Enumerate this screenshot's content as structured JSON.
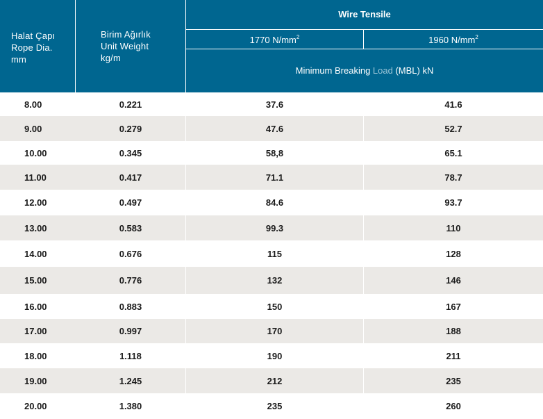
{
  "header": {
    "col1": [
      "Halat Çapı",
      "Rope Dia.",
      "mm"
    ],
    "col2": [
      "Birim Ağırlık",
      "Unit Weight",
      "kg/m"
    ],
    "group_title": "Wire Tensile",
    "tensile_1_value": "1770 N/mm",
    "tensile_1_exp": "2",
    "tensile_2_value": "1960 N/mm",
    "tensile_2_exp": "2",
    "mbl_prefix": "Minimum Breaking ",
    "mbl_load": "Load",
    "mbl_suffix": " (MBL) kN"
  },
  "colors": {
    "header_bg": "#006690",
    "alt_row": "#ebe9e6",
    "load_word": "#9cc6d8"
  },
  "rows": [
    [
      "8.00",
      "0.221",
      "37.6",
      "41.6"
    ],
    [
      "9.00",
      "0.279",
      "47.6",
      "52.7"
    ],
    [
      "10.00",
      "0.345",
      "58,8",
      "65.1"
    ],
    [
      "11.00",
      "0.417",
      "71.1",
      "78.7"
    ],
    [
      "12.00",
      "0.497",
      "84.6",
      "93.7"
    ],
    [
      "13.00",
      "0.583",
      "99.3",
      "110"
    ],
    [
      "14.00",
      "0.676",
      "115",
      "128"
    ],
    [
      "15.00",
      "0.776",
      "132",
      "146"
    ],
    [
      "16.00",
      "0.883",
      "150",
      "167"
    ],
    [
      "17.00",
      "0.997",
      "170",
      "188"
    ],
    [
      "18.00",
      "1.118",
      "190",
      "211"
    ],
    [
      "19.00",
      "1.245",
      "212",
      "235"
    ],
    [
      "20.00",
      "1.380",
      "235",
      "260"
    ]
  ]
}
